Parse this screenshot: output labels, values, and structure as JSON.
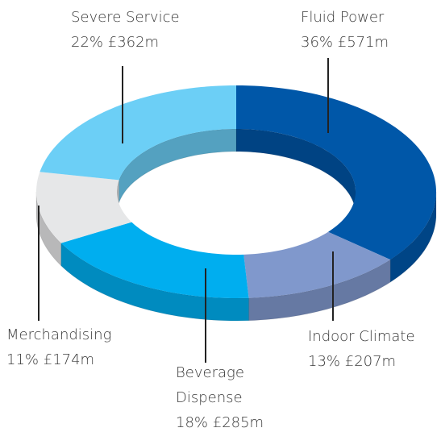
{
  "chart_data": {
    "type": "pie",
    "donut": true,
    "categories": [
      "Fluid Power",
      "Indoor Climate",
      "Beverage Dispense",
      "Merchandising",
      "Severe Service"
    ],
    "values": [
      36,
      13,
      18,
      11,
      22
    ],
    "value_labels": [
      "36%",
      "13%",
      "18%",
      "11%",
      "22%"
    ],
    "amounts": [
      571,
      207,
      285,
      174,
      362
    ],
    "amount_labels": [
      "£571m",
      "£207m",
      "£285m",
      "£174m",
      "£362m"
    ],
    "colors": [
      "#0057a8",
      "#8098cc",
      "#00aeef",
      "#e6e7e8",
      "#6ccff6"
    ]
  }
}
